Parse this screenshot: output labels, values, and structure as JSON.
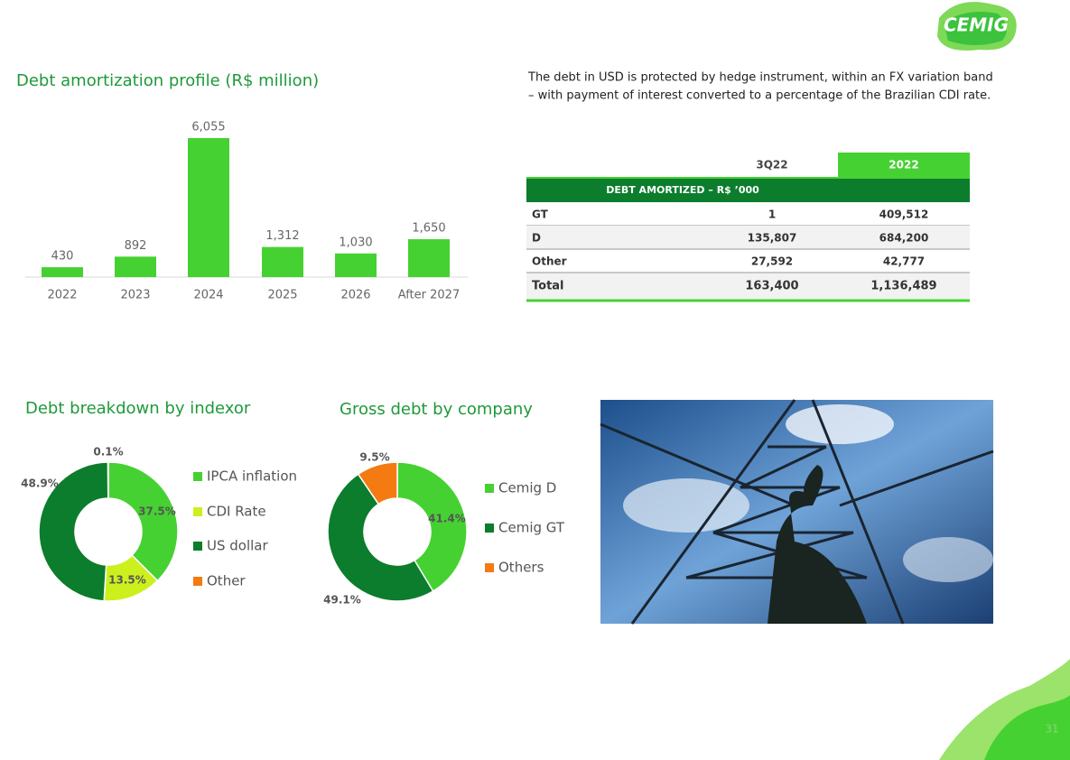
{
  "logo": "CEMIG",
  "page_number": "31",
  "note": [
    "The debt in USD is protected by hedge instrument, within an FX variation band",
    "– with payment of interest converted to a percentage of the Brazilian CDI rate."
  ],
  "table": {
    "columns": [
      "3Q22",
      "2022"
    ],
    "section": "DEBT AMORTIZED – R$ ’000",
    "rows": [
      [
        "GT",
        "1",
        "409,512"
      ],
      [
        "D",
        "135,807",
        "684,200"
      ],
      [
        "Other",
        "27,592",
        "42,777"
      ],
      [
        "Total",
        "163,400",
        "1,136,489"
      ]
    ]
  },
  "chart_data": [
    {
      "type": "bar",
      "title": "Debt amortization profile (R$ million)",
      "categories": [
        "2022",
        "2023",
        "2024",
        "2025",
        "2026",
        "After 2027"
      ],
      "values": [
        430,
        892,
        6055,
        1312,
        1030,
        1650
      ],
      "value_labels": [
        "430",
        "892",
        "6,055",
        "1,312",
        "1,030",
        "1,650"
      ],
      "color": "#46d132"
    },
    {
      "type": "donut",
      "title": "Debt breakdown by indexor",
      "categories": [
        "IPCA inflation",
        "CDI Rate",
        "US dollar",
        "Other"
      ],
      "values": [
        37.5,
        13.5,
        48.9,
        0.1
      ],
      "value_labels": [
        "37.5%",
        "13.5%",
        "48.9%",
        "0.1%"
      ],
      "colors": [
        "#46d132",
        "#ccf01e",
        "#0b7d2c",
        "#f47a12"
      ]
    },
    {
      "type": "donut",
      "title": "Gross debt by company",
      "categories": [
        "Cemig D",
        "Cemig GT",
        "Others"
      ],
      "values": [
        41.4,
        49.1,
        9.5
      ],
      "value_labels": [
        "41.4%",
        "49.1%",
        "9.5%"
      ],
      "colors": [
        "#46d132",
        "#0b7d2c",
        "#f47a12"
      ]
    }
  ]
}
